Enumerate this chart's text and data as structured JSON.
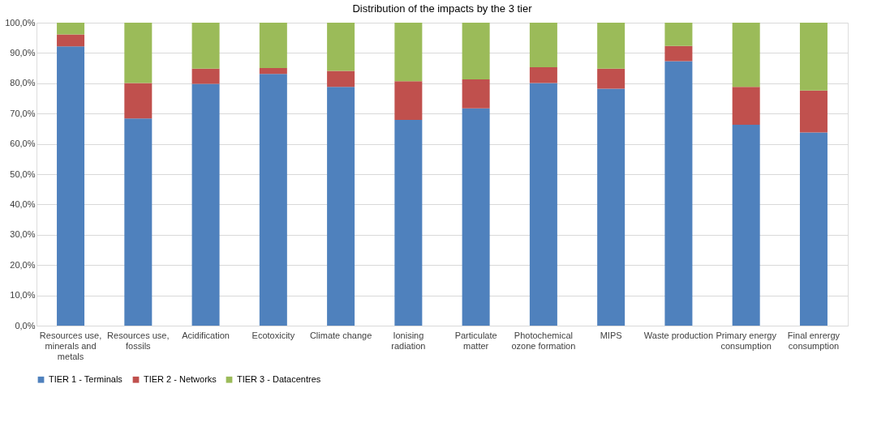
{
  "chart_data": {
    "type": "bar",
    "stacked": true,
    "title": "Distribution of the impacts by the 3 tier",
    "categories": [
      "Resources use, minerals and metals",
      "Resources use, fossils",
      "Acidification",
      "Ecotoxicity",
      "Climate change",
      "Ionising radiation",
      "Particulate matter",
      "Photochemical ozone formation",
      "MIPS",
      "Waste production",
      "Primary energy consumption",
      "Final enrergy consumption"
    ],
    "series": [
      {
        "name": "TIER 1 - Terminals",
        "color": "#4f81bd",
        "values": [
          92.2,
          68.4,
          79.8,
          83.1,
          78.8,
          67.9,
          71.7,
          80.1,
          78.2,
          87.3,
          66.3,
          63.8
        ]
      },
      {
        "name": "TIER 2 - Networks",
        "color": "#c0504d",
        "values": [
          3.9,
          11.7,
          5.0,
          1.9,
          5.3,
          12.8,
          9.6,
          5.2,
          6.6,
          5.0,
          12.5,
          13.8
        ]
      },
      {
        "name": "TIER 3 - Datacentres",
        "color": "#9bbb59",
        "values": [
          3.9,
          19.9,
          15.2,
          15.0,
          15.9,
          19.3,
          18.7,
          14.7,
          15.2,
          7.7,
          21.2,
          22.4
        ]
      }
    ],
    "ylim": [
      0,
      100
    ],
    "yticks": [
      {
        "value": 0,
        "label": "0,0%"
      },
      {
        "value": 10,
        "label": "10,0%"
      },
      {
        "value": 20,
        "label": "20,0%"
      },
      {
        "value": 30,
        "label": "30,0%"
      },
      {
        "value": 40,
        "label": "40,0%"
      },
      {
        "value": 50,
        "label": "50,0%"
      },
      {
        "value": 60,
        "label": "60,0%"
      },
      {
        "value": 70,
        "label": "70,0%"
      },
      {
        "value": 80,
        "label": "80,0%"
      },
      {
        "value": 90,
        "label": "90,0%"
      },
      {
        "value": 100,
        "label": "100,0%"
      }
    ],
    "grid": "y",
    "legend": "bottom"
  }
}
